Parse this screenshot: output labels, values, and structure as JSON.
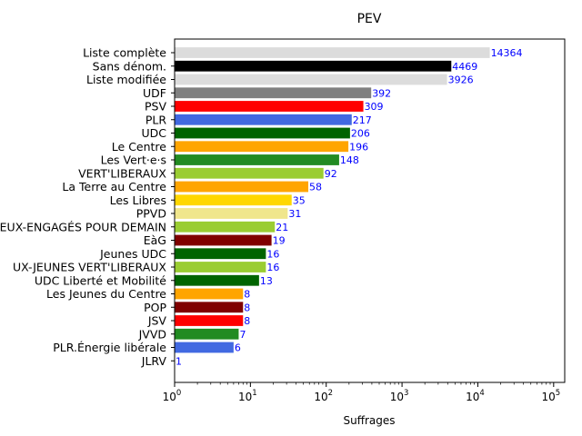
{
  "chart_data": {
    "type": "bar",
    "orientation": "horizontal",
    "title": "PEV",
    "xlabel": "Suffrages",
    "ylabel": "",
    "x_scale": "log",
    "xlim": [
      1,
      140000
    ],
    "x_ticks": [
      {
        "value": 1,
        "base": "10",
        "exp": "0"
      },
      {
        "value": 10,
        "base": "10",
        "exp": "1"
      },
      {
        "value": 100,
        "base": "10",
        "exp": "2"
      },
      {
        "value": 1000,
        "base": "10",
        "exp": "3"
      },
      {
        "value": 10000,
        "base": "10",
        "exp": "4"
      },
      {
        "value": 100000,
        "base": "10",
        "exp": "5"
      }
    ],
    "value_label_color": "#0000ff",
    "grid": false,
    "legend": "none",
    "bars": [
      {
        "label": "Liste complète",
        "value": 14364,
        "color": "#dcdcdc"
      },
      {
        "label": "Sans dénom.",
        "value": 4469,
        "color": "#000000"
      },
      {
        "label": "Liste modifiée",
        "value": 3926,
        "color": "#dcdcdc"
      },
      {
        "label": "UDF",
        "value": 392,
        "color": "#808080"
      },
      {
        "label": "PSV",
        "value": 309,
        "color": "#ff0000"
      },
      {
        "label": "PLR",
        "value": 217,
        "color": "#4169e1"
      },
      {
        "label": "UDC",
        "value": 206,
        "color": "#006400"
      },
      {
        "label": "Le Centre",
        "value": 196,
        "color": "#ffa500"
      },
      {
        "label": "Les Vert·e·s",
        "value": 148,
        "color": "#228b22"
      },
      {
        "label": "VERT'LIBERAUX",
        "value": 92,
        "color": "#9acd32"
      },
      {
        "label": "La Terre au Centre",
        "value": 58,
        "color": "#ffa500"
      },
      {
        "label": "Les Libres",
        "value": 35,
        "color": "#ffd700"
      },
      {
        "label": "PPVD",
        "value": 31,
        "color": "#f0e68c"
      },
      {
        "label": "EUX-ENGAGÉS POUR DEMAIN",
        "value": 21,
        "color": "#9acd32"
      },
      {
        "label": "EàG",
        "value": 19,
        "color": "#800000"
      },
      {
        "label": "Jeunes UDC",
        "value": 16,
        "color": "#006400"
      },
      {
        "label": "UX-JEUNES VERT'LIBERAUX",
        "value": 16,
        "color": "#9acd32"
      },
      {
        "label": "UDC Liberté et Mobilité",
        "value": 13,
        "color": "#006400"
      },
      {
        "label": "Les Jeunes du Centre",
        "value": 8,
        "color": "#ffa500"
      },
      {
        "label": "POP",
        "value": 8,
        "color": "#800000"
      },
      {
        "label": "JSV",
        "value": 8,
        "color": "#ff0000"
      },
      {
        "label": "JVVD",
        "value": 7,
        "color": "#228b22"
      },
      {
        "label": "PLR.Énergie libérale",
        "value": 6,
        "color": "#4169e1"
      },
      {
        "label": "JLRV",
        "value": 1,
        "color": "#4169e1"
      }
    ]
  }
}
